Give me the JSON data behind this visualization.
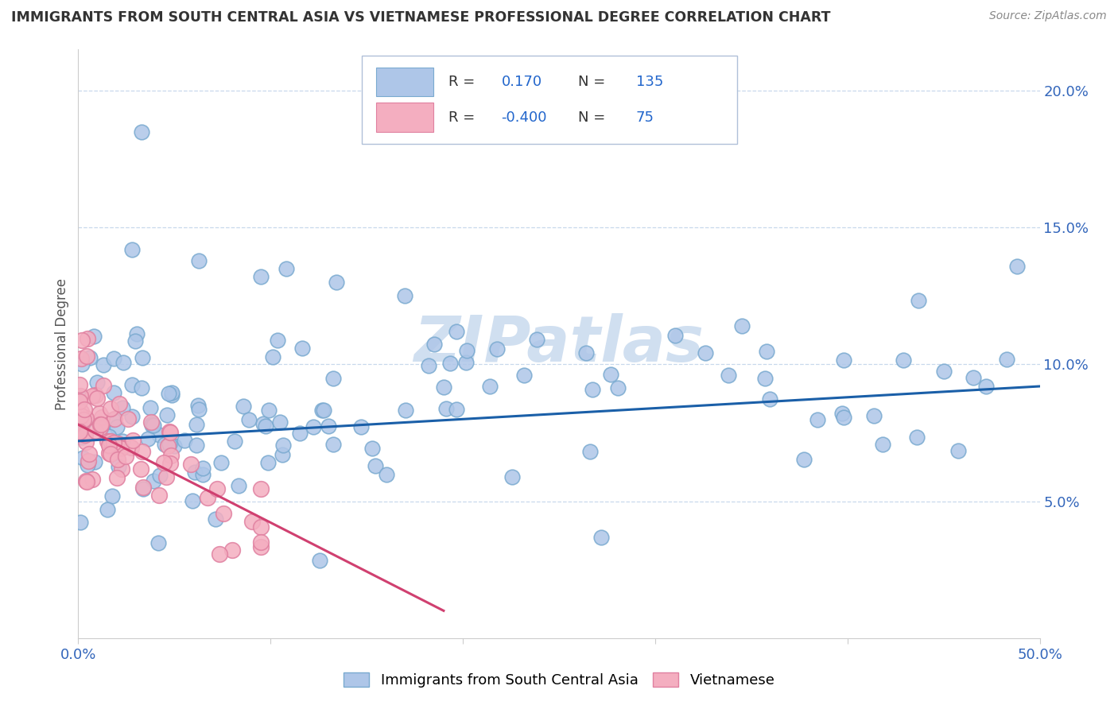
{
  "title": "IMMIGRANTS FROM SOUTH CENTRAL ASIA VS VIETNAMESE PROFESSIONAL DEGREE CORRELATION CHART",
  "source": "Source: ZipAtlas.com",
  "ylabel": "Professional Degree",
  "xmin": 0.0,
  "xmax": 50.0,
  "ymin": 0.0,
  "ymax": 21.5,
  "yticks": [
    5.0,
    10.0,
    15.0,
    20.0
  ],
  "ytick_labels": [
    "5.0%",
    "10.0%",
    "15.0%",
    "20.0%"
  ],
  "blue_R": 0.17,
  "blue_N": 135,
  "pink_R": -0.4,
  "pink_N": 75,
  "blue_color": "#aec6e8",
  "blue_edge_color": "#7aaad0",
  "pink_color": "#f4aec0",
  "pink_edge_color": "#e080a0",
  "blue_line_color": "#1a5fa8",
  "pink_line_color": "#d04070",
  "watermark": "ZIPatlas",
  "watermark_color": "#d0dff0",
  "legend_label_blue": "Immigrants from South Central Asia",
  "legend_label_pink": "Vietnamese",
  "blue_trend_x0": 0.0,
  "blue_trend_x1": 50.0,
  "blue_trend_y0": 7.2,
  "blue_trend_y1": 9.2,
  "pink_trend_x0": 0.0,
  "pink_trend_x1": 19.0,
  "pink_trend_y0": 7.8,
  "pink_trend_y1": 1.0
}
